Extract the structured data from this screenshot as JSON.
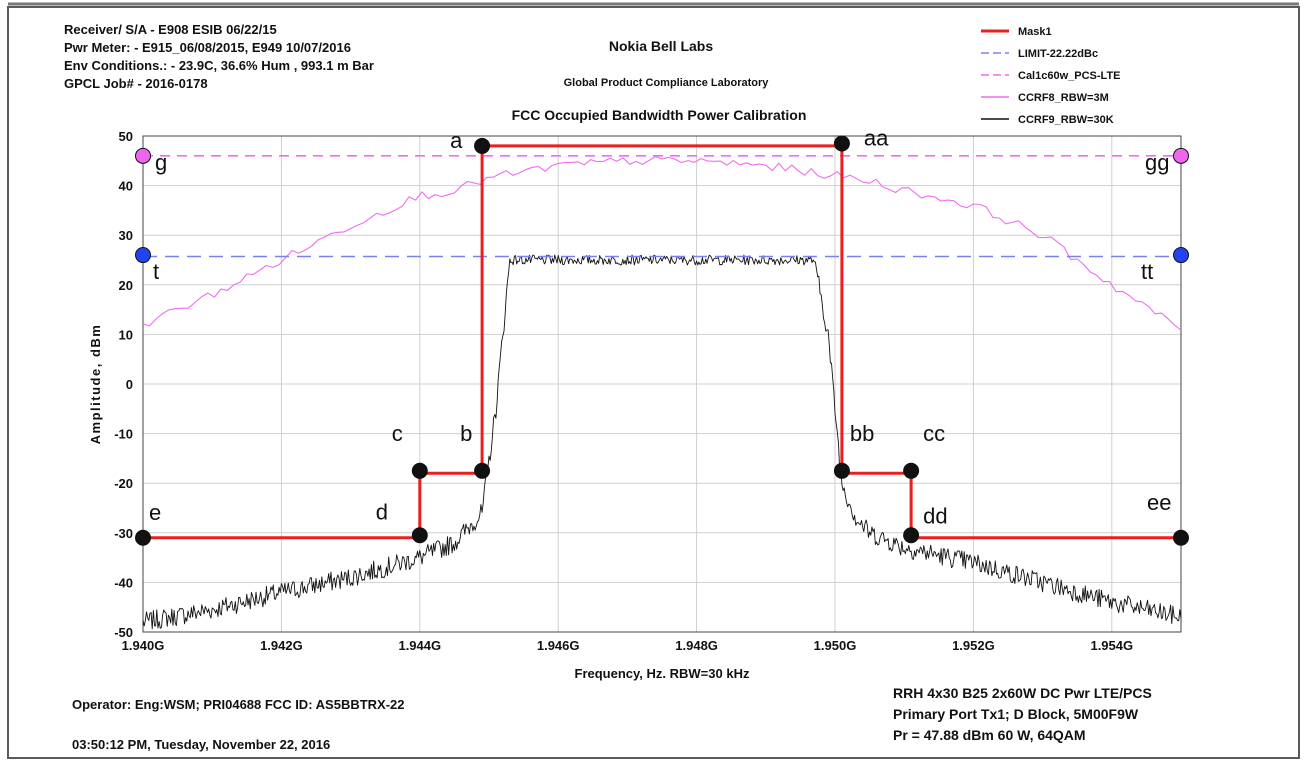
{
  "header": {
    "left_lines": [
      "Receiver/ S/A  - E908 ESIB 06/22/15",
      "Pwr Meter: - E915_06/08/2015, E949 10/07/2016",
      "Env Conditions.: - 23.9C, 36.6% Hum ,  993.1 m Bar",
      "GPCL Job#  - 2016-0178"
    ],
    "org": "Nokia Bell Labs",
    "lab": "Global Product Compliance Laboratory"
  },
  "footer": {
    "operator": "Operator:  Eng:WSM;  PRI04688  FCC ID: AS5BBTRX-22",
    "timestamp": "03:50:12 PM, Tuesday, November 22, 2016",
    "right_lines": [
      "RRH 4x30 B25  2x60W DC Pwr LTE/PCS",
      "Primary Port Tx1;  D Block, 5M00F9W",
      "Pr = 47.88 dBm  60 W, 64QAM"
    ]
  },
  "colors": {
    "mask": "#e8201f",
    "limit": "#7a82f0",
    "cal": "#f06cf0",
    "ccrf8": "#f06cf0",
    "ccrf9": "#111111",
    "point_black": "#111111",
    "point_magenta": "#ee66ee",
    "point_blue": "#2244ee"
  },
  "chart_data": {
    "type": "line",
    "title": "FCC Occupied Bandwidth Power Calibration",
    "xlabel": "Frequency, Hz.  RBW=30 kHz",
    "ylabel": "Amplitude, dBm",
    "xlim": [
      1.94,
      1.955
    ],
    "ylim": [
      -50,
      50
    ],
    "x_unit": "GHz",
    "x_ticks": [
      1.94,
      1.942,
      1.944,
      1.946,
      1.948,
      1.95,
      1.952,
      1.954
    ],
    "x_tick_labels": [
      "1.940G",
      "1.942G",
      "1.944G",
      "1.946G",
      "1.948G",
      "1.950G",
      "1.952G",
      "1.954G"
    ],
    "y_ticks": [
      -50,
      -40,
      -30,
      -20,
      -10,
      0,
      10,
      20,
      30,
      40,
      50
    ],
    "y_tick_labels": [
      "-50",
      "-40",
      "-30",
      "-20",
      "-10",
      "0",
      "10",
      "20",
      "30",
      "40",
      "50"
    ],
    "grid": true,
    "legend_position": "top-right",
    "series": [
      {
        "name": "Mask1",
        "style": "solid-thick",
        "x": [
          1.94,
          1.944,
          1.944,
          1.9449,
          1.9449,
          1.9501,
          1.9501,
          1.9511,
          1.9511,
          1.955
        ],
        "y": [
          -31,
          -31,
          -18,
          -18,
          48,
          48,
          -18,
          -18,
          -31,
          -31
        ]
      },
      {
        "name": "LIMIT-22.22dBc",
        "style": "dashed",
        "x": [
          1.94,
          1.955
        ],
        "y": [
          25.7,
          25.7
        ]
      },
      {
        "name": "Cal1c60w_PCS-LTE",
        "style": "dashed",
        "x": [
          1.94,
          1.955
        ],
        "y": [
          46,
          46
        ]
      },
      {
        "name": "CCRF8_RBW=3M",
        "style": "solid",
        "x": [
          1.94,
          1.941,
          1.942,
          1.943,
          1.944,
          1.9445,
          1.945,
          1.946,
          1.947,
          1.948,
          1.949,
          1.95,
          1.9505,
          1.951,
          1.952,
          1.953,
          1.954,
          1.955
        ],
        "y": [
          12,
          18,
          25,
          32,
          38,
          39,
          41.5,
          44,
          45,
          45,
          44,
          42,
          41,
          39,
          36,
          30,
          20,
          11
        ]
      },
      {
        "name": "CCRF9_RBW=30K",
        "style": "solid-noisy",
        "x": [
          1.94,
          1.941,
          1.942,
          1.943,
          1.944,
          1.9445,
          1.9449,
          1.9451,
          1.9453,
          1.946,
          1.947,
          1.948,
          1.949,
          1.9497,
          1.9499,
          1.9501,
          1.9503,
          1.9505,
          1.951,
          1.952,
          1.953,
          1.954,
          1.955
        ],
        "y": [
          -48,
          -45.5,
          -42,
          -39,
          -35,
          -32,
          -26,
          -5,
          25,
          25,
          25,
          25,
          25,
          25,
          10,
          -20,
          -27,
          -30,
          -33,
          -36,
          -40,
          -44,
          -47
        ]
      }
    ],
    "points": [
      {
        "label": "a",
        "x": 1.9449,
        "y": 48,
        "kind": "black"
      },
      {
        "label": "aa",
        "x": 1.9501,
        "y": 48.5,
        "kind": "black"
      },
      {
        "label": "b",
        "x": 1.9449,
        "y": -17.5,
        "kind": "black"
      },
      {
        "label": "bb",
        "x": 1.9501,
        "y": -17.5,
        "kind": "black"
      },
      {
        "label": "c",
        "x": 1.944,
        "y": -17.5,
        "kind": "black"
      },
      {
        "label": "cc",
        "x": 1.9511,
        "y": -17.5,
        "kind": "black"
      },
      {
        "label": "d",
        "x": 1.944,
        "y": -30.5,
        "kind": "black"
      },
      {
        "label": "dd",
        "x": 1.9511,
        "y": -30.5,
        "kind": "black"
      },
      {
        "label": "e",
        "x": 1.94,
        "y": -31,
        "kind": "black"
      },
      {
        "label": "ee",
        "x": 1.955,
        "y": -31,
        "kind": "black"
      },
      {
        "label": "g",
        "x": 1.94,
        "y": 46,
        "kind": "magenta"
      },
      {
        "label": "gg",
        "x": 1.955,
        "y": 46,
        "kind": "magenta"
      },
      {
        "label": "t",
        "x": 1.94,
        "y": 26,
        "kind": "blue"
      },
      {
        "label": "tt",
        "x": 1.955,
        "y": 26,
        "kind": "blue"
      }
    ]
  }
}
